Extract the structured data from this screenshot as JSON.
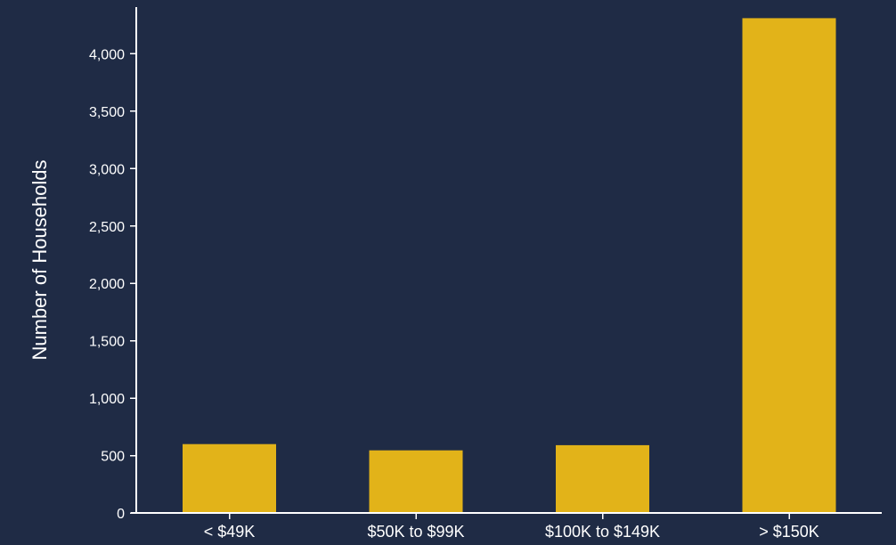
{
  "chart_data": {
    "type": "bar",
    "title": "",
    "xlabel": "",
    "ylabel": "Number of Households",
    "categories": [
      "< $49K",
      "$50K to $99K",
      "$100K to $149K",
      "> $150K"
    ],
    "values": [
      600,
      545,
      590,
      4310
    ],
    "ylim": [
      0,
      4400
    ],
    "yticks": [
      0,
      500,
      1000,
      1500,
      2000,
      2500,
      3000,
      3500,
      4000
    ],
    "ytick_labels": [
      "0",
      "500",
      "1,000",
      "1,500",
      "2,000",
      "2,500",
      "3,000",
      "3,500",
      "4,000"
    ],
    "grid": false,
    "legend": "none",
    "colors": {
      "background": "#1f2b45",
      "bar": "#e2b319",
      "axis": "#ffffff",
      "text": "#ffffff"
    }
  }
}
